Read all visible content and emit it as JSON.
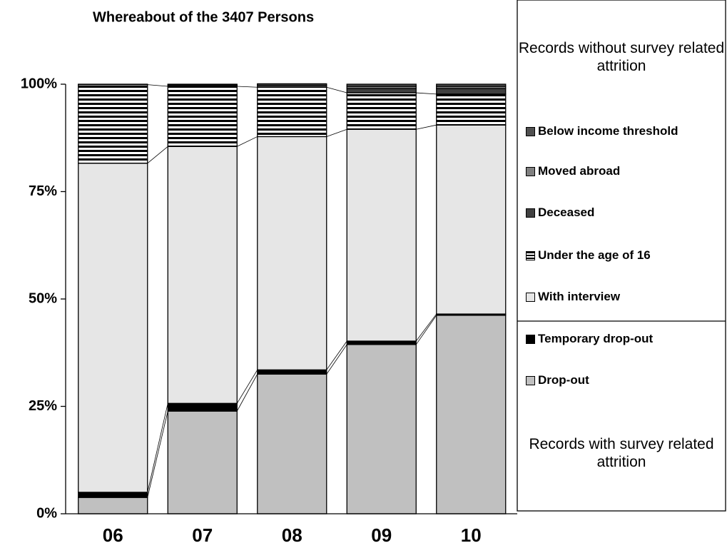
{
  "chart_data": {
    "type": "stacked_bar_100",
    "title": "Whereabout of the 3407 Persons",
    "categories": [
      "06",
      "07",
      "08",
      "09",
      "10"
    ],
    "series": [
      {
        "name": "Drop-out",
        "color": "#c0c0c0",
        "values": [
          3.8,
          23.9,
          32.5,
          39.4,
          46.2
        ]
      },
      {
        "name": "Temporary drop-out",
        "color": "#000000",
        "values": [
          1.2,
          1.8,
          1.0,
          0.8,
          0.3
        ]
      },
      {
        "name": "With interview",
        "color": "#e6e6e6",
        "values": [
          76.6,
          59.8,
          54.3,
          49.3,
          44.0
        ]
      },
      {
        "name": "Under the age of 16",
        "color": "#ffffff",
        "hatch": "horizontal",
        "values": [
          18.3,
          14.0,
          11.5,
          8.5,
          7.2
        ]
      },
      {
        "name": "Deceased",
        "color": "#404040",
        "values": [
          0.1,
          0.3,
          0.5,
          1.0,
          1.3
        ]
      },
      {
        "name": "Moved abroad",
        "color": "#808080",
        "values": [
          0,
          0.2,
          0.3,
          0.5,
          0.5
        ]
      },
      {
        "name": "Below income threshold",
        "color": "#505050",
        "values": [
          0,
          0,
          0,
          0.5,
          0.5
        ]
      }
    ],
    "ylim": [
      0,
      100
    ],
    "yticks": [
      {
        "value": 0,
        "label": "0%"
      },
      {
        "value": 25,
        "label": "25%"
      },
      {
        "value": 50,
        "label": "50%"
      },
      {
        "value": 75,
        "label": "75%"
      },
      {
        "value": 100,
        "label": "100%"
      }
    ],
    "annotations": [
      "Records without survey related attrition",
      "Records with survey related attrition"
    ]
  }
}
